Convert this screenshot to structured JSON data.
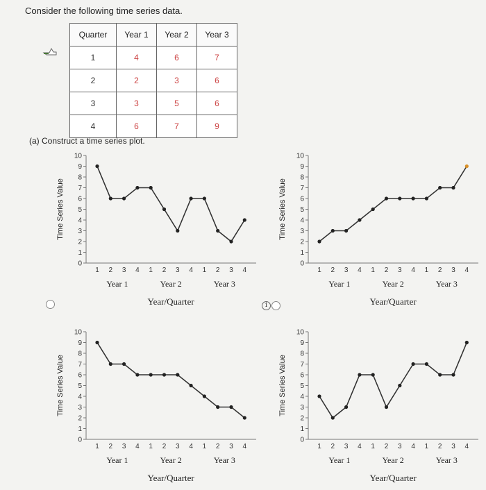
{
  "prompt": "Consider the following time series data.",
  "table": {
    "headers": [
      "Quarter",
      "Year 1",
      "Year 2",
      "Year 3"
    ],
    "rows": [
      [
        "1",
        "4",
        "6",
        "7"
      ],
      [
        "2",
        "2",
        "3",
        "6"
      ],
      [
        "3",
        "3",
        "5",
        "6"
      ],
      [
        "4",
        "6",
        "7",
        "9"
      ]
    ]
  },
  "part_a": "(a) Construct a time series plot.",
  "icons": {
    "cursor": "pointer-hand-icon",
    "info": "info-icon"
  },
  "chart_data": [
    {
      "type": "line",
      "option": "top-left",
      "x": [
        "1",
        "2",
        "3",
        "4",
        "1",
        "2",
        "3",
        "4",
        "1",
        "2",
        "3",
        "4"
      ],
      "groups": [
        "Year 1",
        "Year 2",
        "Year 3"
      ],
      "values": [
        9,
        6,
        6,
        7,
        7,
        5,
        3,
        6,
        6,
        3,
        2,
        4
      ],
      "xlabel": "Year/Quarter",
      "ylabel": "Time Series Value",
      "yticks": [
        "0",
        "1",
        "2",
        "3",
        "4",
        "5",
        "6",
        "7",
        "8",
        "9",
        "10"
      ],
      "ylim": [
        0,
        10
      ]
    },
    {
      "type": "line",
      "option": "top-right",
      "x": [
        "1",
        "2",
        "3",
        "4",
        "1",
        "2",
        "3",
        "4",
        "1",
        "2",
        "3",
        "4"
      ],
      "groups": [
        "Year 1",
        "Year 2",
        "Year 3"
      ],
      "values": [
        2,
        3,
        3,
        4,
        5,
        6,
        6,
        6,
        6,
        7,
        7,
        9
      ],
      "xlabel": "Year/Quarter",
      "ylabel": "Time Series Value",
      "yticks": [
        "0",
        "1",
        "2",
        "3",
        "4",
        "5",
        "6",
        "7",
        "8",
        "9",
        "10"
      ],
      "ylim": [
        0,
        10
      ]
    },
    {
      "type": "line",
      "option": "bottom-left",
      "x": [
        "1",
        "2",
        "3",
        "4",
        "1",
        "2",
        "3",
        "4",
        "1",
        "2",
        "3",
        "4"
      ],
      "groups": [
        "Year 1",
        "Year 2",
        "Year 3"
      ],
      "values": [
        9,
        7,
        7,
        6,
        6,
        6,
        6,
        5,
        4,
        3,
        3,
        2
      ],
      "xlabel": "Year/Quarter",
      "ylabel": "Time Series Value",
      "yticks": [
        "0",
        "1",
        "2",
        "3",
        "4",
        "5",
        "6",
        "7",
        "8",
        "9",
        "10"
      ],
      "ylim": [
        0,
        10
      ]
    },
    {
      "type": "line",
      "option": "bottom-right",
      "x": [
        "1",
        "2",
        "3",
        "4",
        "1",
        "2",
        "3",
        "4",
        "1",
        "2",
        "3",
        "4"
      ],
      "groups": [
        "Year 1",
        "Year 2",
        "Year 3"
      ],
      "values": [
        4,
        2,
        3,
        6,
        6,
        3,
        5,
        7,
        7,
        6,
        6,
        9
      ],
      "xlabel": "Year/Quarter",
      "ylabel": "Time Series Value",
      "yticks": [
        "0",
        "1",
        "2",
        "3",
        "4",
        "5",
        "6",
        "7",
        "8",
        "9",
        "10"
      ],
      "ylim": [
        0,
        10
      ]
    }
  ]
}
